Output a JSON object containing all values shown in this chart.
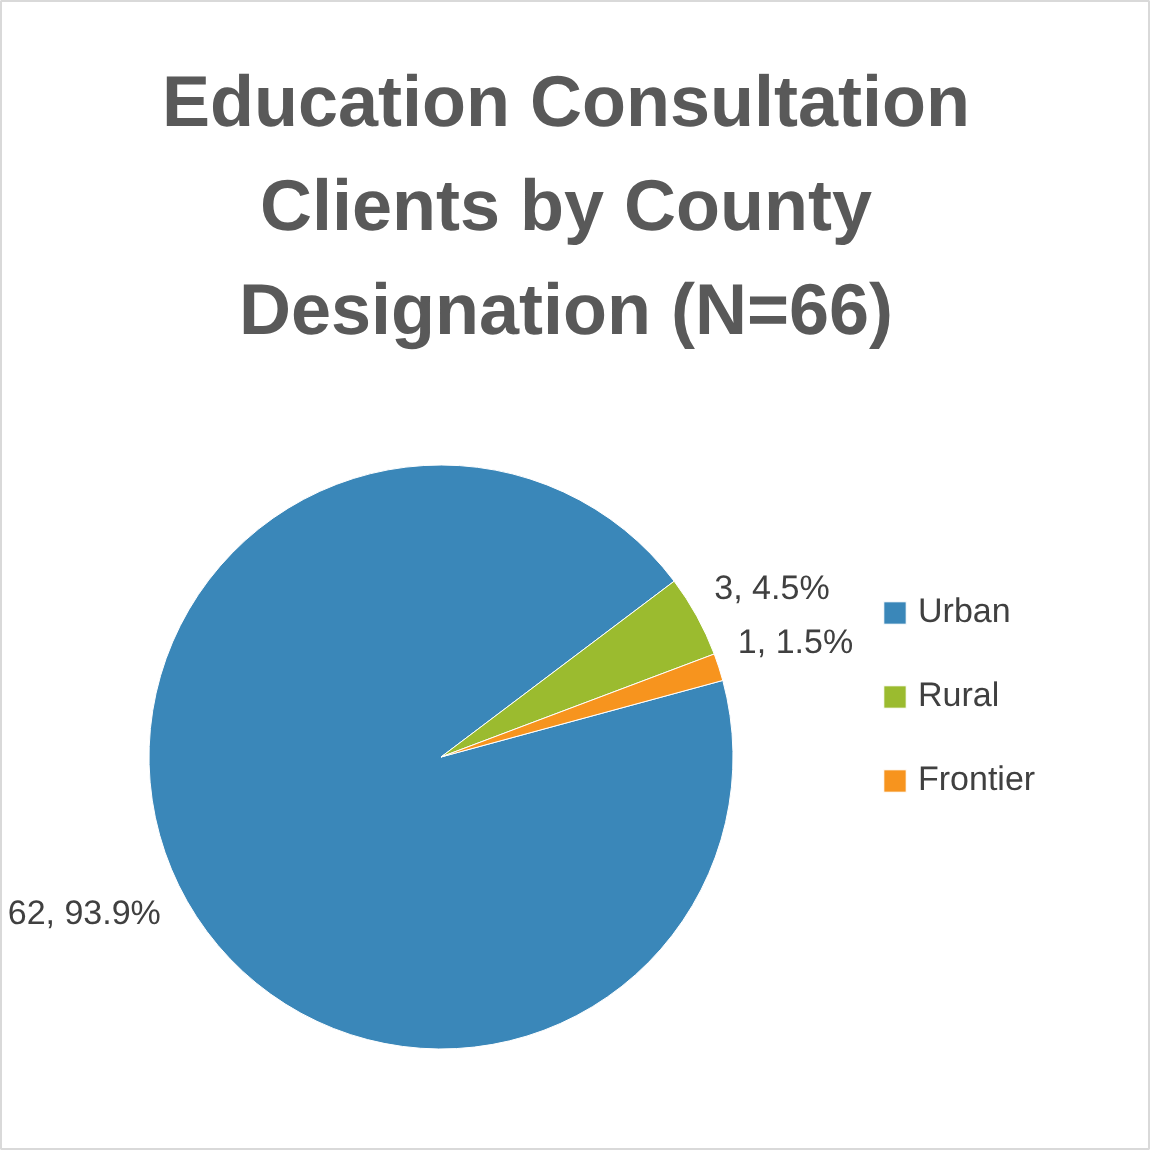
{
  "chart_data": {
    "type": "pie",
    "title": "Education Consultation Clients by County Designation (N=66)",
    "categories": [
      "Urban",
      "Rural",
      "Frontier"
    ],
    "values": [
      62,
      3,
      1
    ],
    "colors": [
      "#3a87b9",
      "#9bbb2f",
      "#f7941e"
    ],
    "value_labels": [
      "62, 93.9%",
      "3, 4.5%",
      "1, 1.5%"
    ],
    "legend": "right"
  }
}
